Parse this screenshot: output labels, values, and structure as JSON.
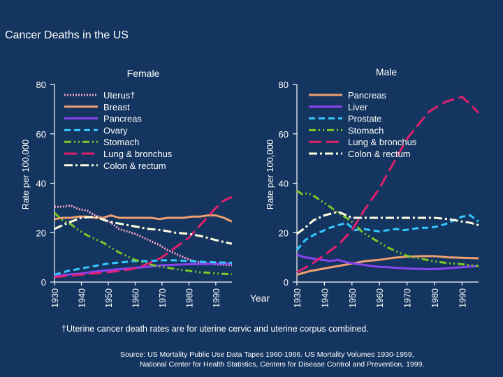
{
  "title": "Cancer Deaths in the US",
  "shared_x_label": "Year",
  "footnote": "†Uterine cancer death rates are for uterine cervic and uterine corpus combined.",
  "source_line1": "Source: US Mortality Public Use Data Tapes 1960-1996.  US Mortality Volumes 1930-1959,",
  "source_line2": "National Center for Health Statistics, Centers for Disease Control and Prevention, 1999.",
  "colors": {
    "background": "#14355f",
    "uterus": "#f0a0c8",
    "breast": "#f0a070",
    "pancreas": "#8a44f0",
    "liver": "#8a44f0",
    "ovary": "#32c8ff",
    "prostate": "#32c8ff",
    "stomach": "#78c828",
    "lung": "#e0206e",
    "colon": "#ffffe0"
  },
  "chart_data": [
    {
      "type": "line",
      "title": "Female",
      "ylabel": "Rate per 100,000",
      "xlabel": "",
      "xlim": [
        1930,
        1996
      ],
      "ylim": [
        0,
        80
      ],
      "x_ticks": [
        "1930",
        "1940",
        "1950",
        "1960",
        "1970",
        "1980",
        "1990"
      ],
      "y_ticks": [
        "0",
        "20",
        "40",
        "60",
        "80"
      ],
      "legend_position": "top-left",
      "series": [
        {
          "name": "Uterus†",
          "color_key": "uterus",
          "dash": "dotted",
          "x": [
            1930,
            1933,
            1936,
            1939,
            1942,
            1945,
            1948,
            1951,
            1954,
            1957,
            1960,
            1963,
            1966,
            1969,
            1972,
            1975,
            1978,
            1981,
            1984,
            1987,
            1990,
            1993,
            1996
          ],
          "y": [
            30.5,
            30.5,
            31,
            29.5,
            29,
            27,
            26,
            24,
            21.5,
            20.5,
            19.5,
            18,
            16.5,
            15,
            13,
            11.5,
            10,
            8.8,
            8,
            7.5,
            7.2,
            7,
            6.8
          ]
        },
        {
          "name": "Breast",
          "color_key": "breast",
          "dash": "solid",
          "x": [
            1930,
            1933,
            1936,
            1939,
            1942,
            1945,
            1948,
            1951,
            1954,
            1957,
            1960,
            1963,
            1966,
            1969,
            1972,
            1975,
            1978,
            1981,
            1984,
            1987,
            1990,
            1993,
            1996
          ],
          "y": [
            25.5,
            26,
            26,
            26.5,
            26.5,
            26,
            26,
            27,
            26,
            26,
            26,
            26,
            26,
            25.5,
            26,
            26,
            26,
            26.5,
            26.5,
            27,
            27,
            26,
            24.5
          ]
        },
        {
          "name": "Pancreas",
          "color_key": "pancreas",
          "dash": "solid",
          "x": [
            1930,
            1935,
            1940,
            1945,
            1950,
            1955,
            1960,
            1965,
            1970,
            1975,
            1980,
            1985,
            1990,
            1996
          ],
          "y": [
            2.5,
            3,
            3.5,
            4.2,
            4.8,
            5.3,
            5.8,
            6.2,
            6.8,
            7,
            7.2,
            7.3,
            7.4,
            7.5
          ]
        },
        {
          "name": "Ovary",
          "color_key": "ovary",
          "dash": "dashed",
          "x": [
            1930,
            1935,
            1940,
            1945,
            1950,
            1955,
            1960,
            1965,
            1970,
            1975,
            1980,
            1985,
            1990,
            1996
          ],
          "y": [
            3,
            4.5,
            5.5,
            6.5,
            7.5,
            8,
            8.5,
            8.5,
            8.8,
            8.8,
            8.5,
            8.2,
            8,
            7.8
          ]
        },
        {
          "name": "Stomach",
          "color_key": "stomach",
          "dash": "dash-dot-dot",
          "x": [
            1930,
            1933,
            1936,
            1939,
            1942,
            1945,
            1948,
            1951,
            1954,
            1957,
            1960,
            1963,
            1966,
            1969,
            1972,
            1975,
            1978,
            1981,
            1984,
            1987,
            1990,
            1993,
            1996
          ],
          "y": [
            28,
            25,
            23.5,
            21,
            19,
            17.5,
            16,
            14,
            12,
            10.5,
            9,
            8,
            7,
            6.3,
            5.8,
            5.3,
            4.8,
            4.4,
            4,
            3.8,
            3.5,
            3.3,
            3.2
          ]
        },
        {
          "name": "Lung & bronchus",
          "color_key": "lung",
          "dash": "long-dash",
          "x": [
            1930,
            1935,
            1940,
            1945,
            1950,
            1955,
            1960,
            1965,
            1970,
            1975,
            1980,
            1985,
            1990,
            1993,
            1996
          ],
          "y": [
            2,
            2.5,
            3,
            3.5,
            4,
            4.6,
            5.5,
            7.5,
            10,
            14,
            18,
            24,
            30,
            33,
            34.5
          ]
        },
        {
          "name": "Colon & rectum",
          "color_key": "colon",
          "dash": "dash-dot",
          "x": [
            1930,
            1935,
            1940,
            1945,
            1950,
            1955,
            1960,
            1965,
            1970,
            1975,
            1980,
            1985,
            1990,
            1996
          ],
          "y": [
            21.5,
            24,
            26,
            26.5,
            24.5,
            23.5,
            22.5,
            21.5,
            21,
            20,
            19.5,
            18.5,
            17,
            15.5
          ]
        }
      ]
    },
    {
      "type": "line",
      "title": "Male",
      "ylabel": "Rate per 100,000",
      "xlabel": "",
      "xlim": [
        1930,
        1996
      ],
      "ylim": [
        0,
        80
      ],
      "x_ticks": [
        "1930",
        "1940",
        "1950",
        "1960",
        "1970",
        "1980",
        "1990"
      ],
      "y_ticks": [
        "0",
        "20",
        "40",
        "60",
        "80"
      ],
      "legend_position": "top-right",
      "series": [
        {
          "name": "Pancreas",
          "color_key": "breast",
          "dash": "solid",
          "x": [
            1930,
            1935,
            1940,
            1945,
            1950,
            1955,
            1960,
            1965,
            1970,
            1975,
            1980,
            1985,
            1990,
            1996
          ],
          "y": [
            3,
            4.5,
            5.5,
            6.5,
            7.5,
            8.5,
            9,
            9.8,
            10.3,
            10.5,
            10.5,
            10,
            9.8,
            9.6
          ]
        },
        {
          "name": "Liver",
          "color_key": "liver",
          "dash": "solid",
          "x": [
            1930,
            1933,
            1936,
            1939,
            1942,
            1945,
            1948,
            1951,
            1954,
            1957,
            1960,
            1963,
            1966,
            1969,
            1972,
            1975,
            1978,
            1981,
            1984,
            1987,
            1990,
            1993,
            1996
          ],
          "y": [
            11,
            10,
            9.5,
            9,
            8.5,
            9,
            8,
            7.5,
            7,
            6.5,
            6.2,
            6,
            5.8,
            5.6,
            5.4,
            5.3,
            5.2,
            5.3,
            5.5,
            5.8,
            6,
            6.3,
            6.5
          ]
        },
        {
          "name": "Prostate",
          "color_key": "prostate",
          "dash": "dashed",
          "x": [
            1930,
            1933,
            1936,
            1939,
            1942,
            1945,
            1948,
            1951,
            1954,
            1957,
            1960,
            1963,
            1966,
            1969,
            1972,
            1975,
            1978,
            1981,
            1984,
            1987,
            1990,
            1993,
            1996
          ],
          "y": [
            13,
            17,
            19,
            20.5,
            22,
            23,
            24,
            21,
            21.5,
            21,
            20.5,
            21,
            21.5,
            21,
            21.5,
            22,
            22,
            22.5,
            23.5,
            25,
            26.5,
            27,
            24.5
          ]
        },
        {
          "name": "Stomach",
          "color_key": "stomach",
          "dash": "dash-dot-dot",
          "x": [
            1930,
            1932,
            1934,
            1936,
            1938,
            1940,
            1942,
            1945,
            1948,
            1951,
            1954,
            1957,
            1960,
            1963,
            1966,
            1969,
            1972,
            1975,
            1978,
            1981,
            1984,
            1987,
            1990,
            1993,
            1996
          ],
          "y": [
            37,
            35.5,
            36,
            35,
            33.5,
            32,
            30.5,
            28,
            26,
            23.5,
            20,
            18,
            16,
            14,
            12.5,
            11,
            10,
            9.5,
            8.8,
            8.2,
            7.8,
            7.5,
            7.2,
            6.8,
            6.5
          ]
        },
        {
          "name": "Lung & bronchus",
          "color_key": "lung",
          "dash": "long-dash",
          "x": [
            1930,
            1935,
            1940,
            1945,
            1950,
            1955,
            1960,
            1965,
            1970,
            1975,
            1978,
            1981,
            1984,
            1987,
            1990,
            1993,
            1996
          ],
          "y": [
            4,
            7,
            11,
            15,
            21,
            30,
            38,
            48,
            58,
            65,
            69,
            71,
            73,
            74,
            75,
            72,
            68.5
          ]
        },
        {
          "name": "Colon & rectum",
          "color_key": "colon",
          "dash": "dash-dot",
          "x": [
            1930,
            1933,
            1936,
            1940,
            1945,
            1950,
            1955,
            1960,
            1965,
            1970,
            1975,
            1980,
            1985,
            1990,
            1993,
            1996
          ],
          "y": [
            19.5,
            22,
            25,
            27,
            28.5,
            26,
            26,
            26,
            26,
            26,
            26,
            26,
            25.5,
            24.5,
            24,
            23
          ]
        }
      ]
    }
  ]
}
